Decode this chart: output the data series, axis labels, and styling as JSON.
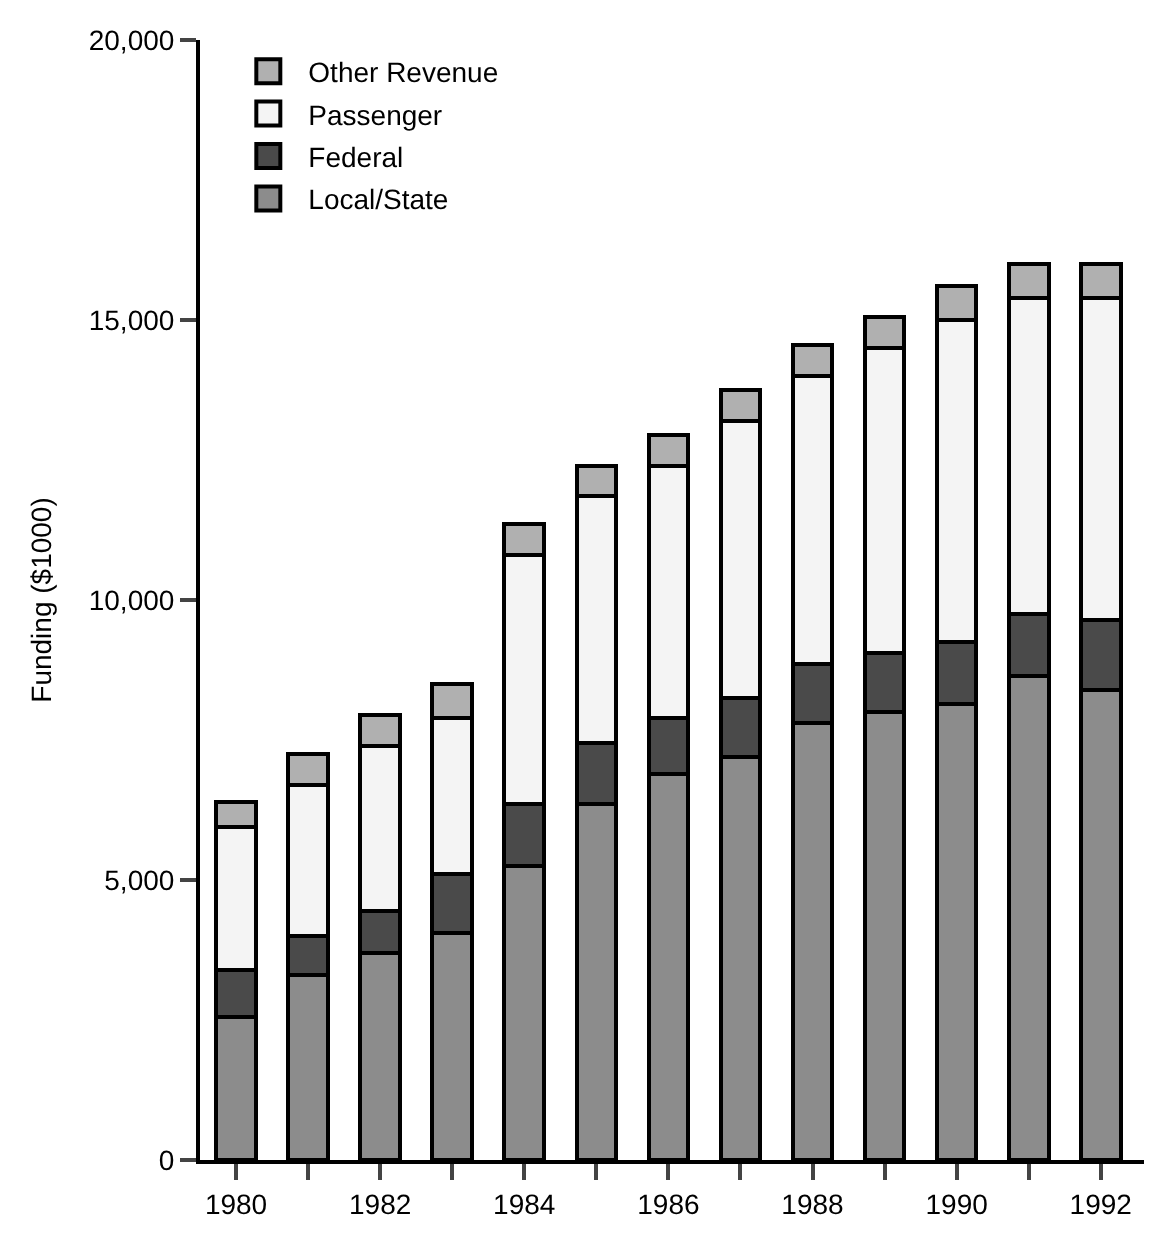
{
  "chart_data": {
    "type": "bar",
    "stacked": true,
    "ylabel": "Funding ($1000)",
    "x": [
      1980,
      1981,
      1982,
      1983,
      1984,
      1985,
      1986,
      1987,
      1988,
      1989,
      1990,
      1991,
      1992
    ],
    "xlim": [
      1979.5,
      1992.6
    ],
    "xticks": [
      1980,
      {
        "value": 1981,
        "label": null
      },
      1982,
      {
        "value": 1983,
        "label": null
      },
      1984,
      {
        "value": 1985,
        "label": null
      },
      1986,
      {
        "value": 1987,
        "label": null
      },
      1988,
      {
        "value": 1989,
        "label": null
      },
      1990,
      {
        "value": 1991,
        "label": null
      },
      1992
    ],
    "ylim": [
      0,
      20000
    ],
    "yticks": [
      {
        "value": 0,
        "label": "0"
      },
      {
        "value": 5000,
        "label": "5,000"
      },
      {
        "value": 10000,
        "label": "10,000"
      },
      {
        "value": 15000,
        "label": "15,000"
      },
      {
        "value": 20000,
        "label": "20,000"
      }
    ],
    "legend": "top left",
    "series": [
      {
        "name": "Local/State",
        "color": "#8c8c8c",
        "values": [
          2550,
          3300,
          3700,
          4050,
          5250,
          6350,
          6900,
          7200,
          7800,
          8000,
          8150,
          8650,
          8400
        ]
      },
      {
        "name": "Federal",
        "color": "#4a4a4a",
        "values": [
          850,
          700,
          750,
          1050,
          1100,
          1100,
          1000,
          1050,
          1050,
          1050,
          1100,
          1100,
          1250
        ]
      },
      {
        "name": "Passenger",
        "color": "#f4f4f4",
        "values": [
          2550,
          2700,
          2950,
          2800,
          4450,
          4400,
          4500,
          4950,
          5150,
          5450,
          5750,
          5650,
          5750
        ]
      },
      {
        "name": "Other Revenue",
        "color": "#b0b0b0",
        "values": [
          450,
          550,
          550,
          600,
          550,
          550,
          550,
          550,
          550,
          550,
          600,
          600,
          600
        ]
      }
    ]
  }
}
